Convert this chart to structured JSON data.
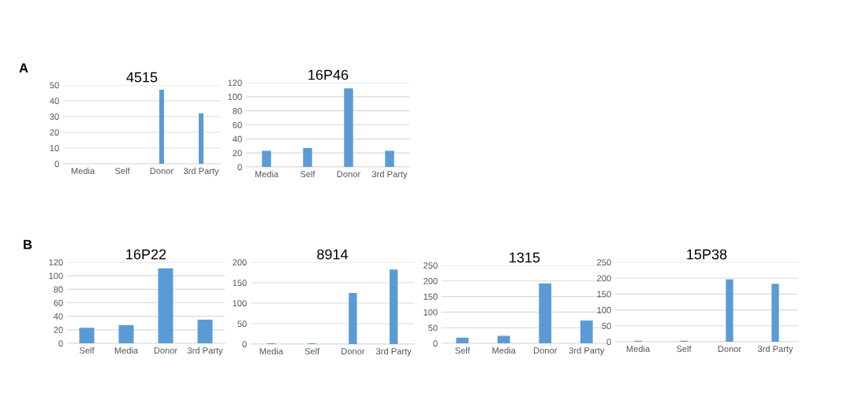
{
  "chart_data": [
    {
      "type": "bar",
      "title": "4515",
      "annotations": [
        "A"
      ],
      "categories": [
        "Media",
        "Self",
        "Donor",
        "3rd Party"
      ],
      "values": [
        0,
        0,
        47,
        32
      ],
      "color": "#5b9bd5",
      "ylim": [
        0,
        50
      ],
      "yticks": [
        0,
        10,
        20,
        30,
        40,
        50
      ],
      "grid": "y"
    },
    {
      "type": "bar",
      "title": "16P46",
      "categories": [
        "Media",
        "Self",
        "Donor",
        "3rd Party"
      ],
      "values": [
        23,
        27,
        112,
        23
      ],
      "color": "#5b9bd5",
      "ylim": [
        0,
        120
      ],
      "yticks": [
        0,
        20,
        40,
        60,
        80,
        100,
        120
      ],
      "grid": "y"
    },
    {
      "type": "bar",
      "title": "16P22",
      "annotations": [
        "B"
      ],
      "categories": [
        "Self",
        "Media",
        "Donor",
        "3rd Party"
      ],
      "values": [
        23,
        27,
        111,
        35
      ],
      "color": "#5b9bd5",
      "ylim": [
        0,
        120
      ],
      "yticks": [
        0,
        20,
        40,
        60,
        80,
        100,
        120
      ],
      "grid": "y"
    },
    {
      "type": "bar",
      "title": "8914",
      "categories": [
        "Media",
        "Self",
        "Donor",
        "3rd Party"
      ],
      "values": [
        2,
        2,
        125,
        182
      ],
      "color": "#5b9bd5",
      "ylim": [
        0,
        200
      ],
      "yticks": [
        0,
        50,
        100,
        150,
        200
      ],
      "grid": "y"
    },
    {
      "type": "bar",
      "title": "1315",
      "categories": [
        "Self",
        "Media",
        "Donor",
        "3rd Party"
      ],
      "values": [
        18,
        24,
        192,
        73
      ],
      "color": "#5b9bd5",
      "ylim": [
        0,
        250
      ],
      "yticks": [
        0,
        50,
        100,
        150,
        200,
        250
      ],
      "grid": "y"
    },
    {
      "type": "bar",
      "title": "15P38",
      "categories": [
        "Media",
        "Self",
        "Donor",
        "3rd Party"
      ],
      "values": [
        3,
        3,
        196,
        182
      ],
      "color": "#5b9bd5",
      "ylim": [
        0,
        250
      ],
      "yticks": [
        0,
        50,
        100,
        150,
        200,
        250
      ],
      "grid": "y"
    }
  ]
}
